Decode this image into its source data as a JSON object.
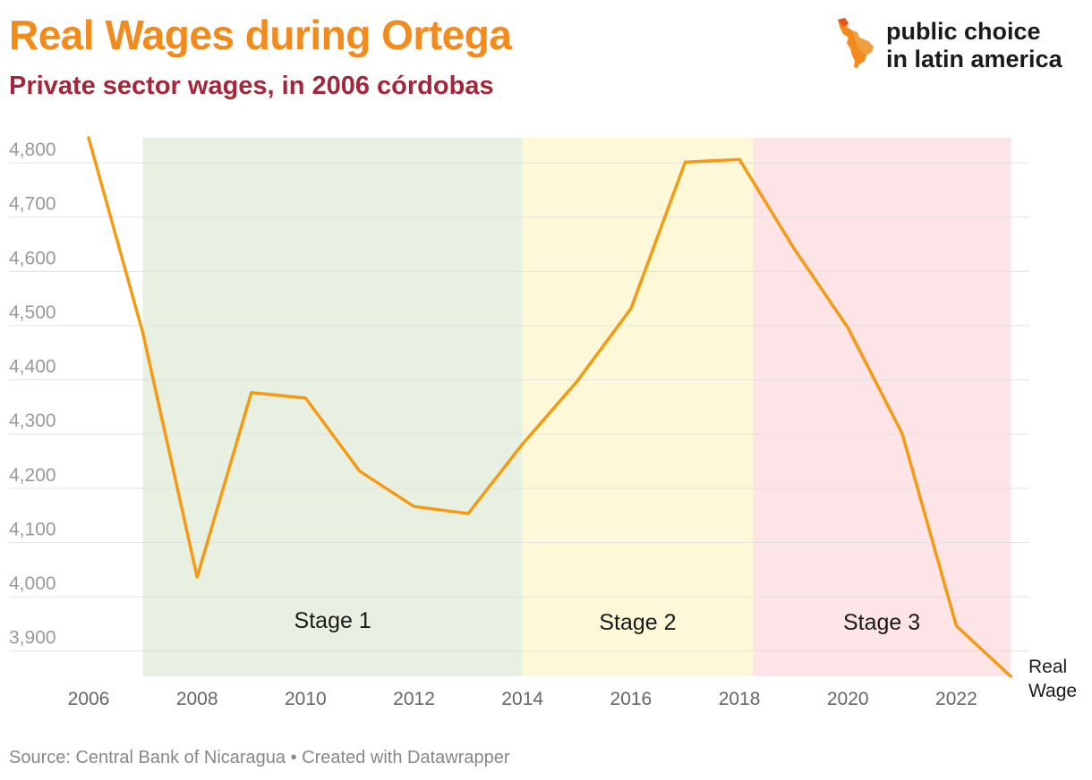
{
  "header": {
    "title": "Real Wages during Ortega",
    "subtitle": "Private sector wages, in 2006 córdobas"
  },
  "brand": {
    "line1": "public choice",
    "line2": "in latin america",
    "logo_icon": "latin-america-map-icon"
  },
  "footer": {
    "source": "Source: Central Bank of Nicaragua • Created with Datawrapper"
  },
  "colors": {
    "title": "#f28a1c",
    "subtitle": "#a3273a",
    "line": "#f59a12",
    "stage1": "#e8f0e2",
    "stage2": "#fdf9d8",
    "stage3": "#fde4e6",
    "grid": "#e2e2e2",
    "axis_text": "#999999"
  },
  "chart_data": {
    "type": "line",
    "title": "Real Wages during Ortega",
    "subtitle": "Private sector wages, in 2006 córdobas",
    "x": [
      2006,
      2007,
      2008,
      2009,
      2010,
      2011,
      2012,
      2013,
      2014,
      2015,
      2016,
      2017,
      2018,
      2019,
      2020,
      2021,
      2022,
      2023
    ],
    "series": [
      {
        "name": "Real Wage",
        "values": [
          4820,
          4460,
          4010,
          4350,
          4340,
          4205,
          4140,
          4127,
          4255,
          4370,
          4505,
          4775,
          4780,
          4617,
          4470,
          4275,
          3920,
          3827
        ]
      }
    ],
    "xlim": [
      2006,
      2023
    ],
    "ylim": [
      3827,
      4820
    ],
    "x_ticks": [
      2006,
      2008,
      2010,
      2012,
      2014,
      2016,
      2018,
      2020,
      2022
    ],
    "x_tick_labels": [
      "2006",
      "2008",
      "2010",
      "2012",
      "2014",
      "2016",
      "2018",
      "2020",
      "2022"
    ],
    "y_ticks": [
      3900,
      4000,
      4100,
      4200,
      4300,
      4400,
      4500,
      4600,
      4700,
      4800
    ],
    "y_tick_labels": [
      "3,900",
      "4,000",
      "4,100",
      "4,200",
      "4,300",
      "4,400",
      "4,500",
      "4,600",
      "4,700",
      "4,800"
    ],
    "grid": true,
    "legend": "inline label at end of line",
    "ranges": [
      {
        "label": "Stage 1",
        "from": 2007,
        "to": 2014,
        "color": "#e8f0e2"
      },
      {
        "label": "Stage 2",
        "from": 2014,
        "to": 2018.25,
        "color": "#fdf9d8"
      },
      {
        "label": "Stage 3",
        "from": 2018.25,
        "to": 2023,
        "color": "#fde4e6"
      }
    ]
  }
}
